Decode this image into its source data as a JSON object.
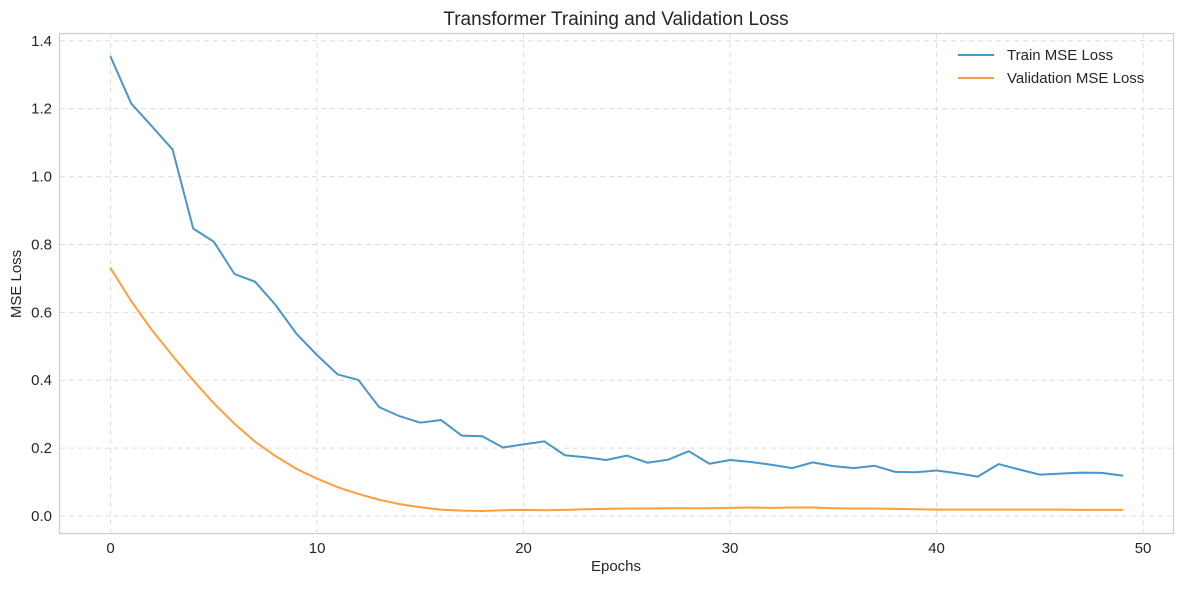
{
  "chart_data": {
    "type": "line",
    "title": "Transformer Training and Validation Loss",
    "xlabel": "Epochs",
    "ylabel": "MSE Loss",
    "xlim": [
      -2.45,
      51.45
    ],
    "ylim": [
      -0.05,
      1.42
    ],
    "xticks": [
      0,
      10,
      20,
      30,
      40,
      50
    ],
    "yticks": [
      0.0,
      0.2,
      0.4,
      0.6,
      0.8,
      1.0,
      1.2,
      1.4
    ],
    "xtick_labels": [
      "0",
      "10",
      "20",
      "30",
      "40",
      "50"
    ],
    "ytick_labels": [
      "0.0",
      "0.2",
      "0.4",
      "0.6",
      "0.8",
      "1.0",
      "1.2",
      "1.4"
    ],
    "grid": true,
    "legend_position": "top-right",
    "x": [
      0,
      1,
      2,
      3,
      4,
      5,
      6,
      7,
      8,
      9,
      10,
      11,
      12,
      13,
      14,
      15,
      16,
      17,
      18,
      19,
      20,
      21,
      22,
      23,
      24,
      25,
      26,
      27,
      28,
      29,
      30,
      31,
      32,
      33,
      34,
      35,
      36,
      37,
      38,
      39,
      40,
      41,
      42,
      43,
      44,
      45,
      46,
      47,
      48,
      49
    ],
    "series": [
      {
        "name": "Train MSE Loss",
        "color": "#4a96c8",
        "values": [
          1.353,
          1.215,
          1.148,
          1.08,
          0.847,
          0.808,
          0.713,
          0.69,
          0.621,
          0.537,
          0.474,
          0.417,
          0.401,
          0.321,
          0.294,
          0.275,
          0.283,
          0.237,
          0.235,
          0.202,
          0.211,
          0.22,
          0.179,
          0.173,
          0.165,
          0.178,
          0.157,
          0.166,
          0.191,
          0.154,
          0.165,
          0.159,
          0.151,
          0.141,
          0.158,
          0.147,
          0.141,
          0.148,
          0.13,
          0.129,
          0.134,
          0.126,
          0.116,
          0.153,
          0.137,
          0.122,
          0.125,
          0.128,
          0.127,
          0.119
        ]
      },
      {
        "name": "Validation MSE Loss",
        "color": "#fd9f3e",
        "values": [
          0.73,
          0.633,
          0.548,
          0.472,
          0.4,
          0.332,
          0.272,
          0.219,
          0.176,
          0.139,
          0.11,
          0.085,
          0.065,
          0.048,
          0.035,
          0.026,
          0.019,
          0.016,
          0.015,
          0.017,
          0.018,
          0.017,
          0.018,
          0.02,
          0.021,
          0.022,
          0.022,
          0.023,
          0.023,
          0.023,
          0.024,
          0.025,
          0.024,
          0.025,
          0.025,
          0.023,
          0.022,
          0.022,
          0.021,
          0.02,
          0.019,
          0.019,
          0.019,
          0.019,
          0.019,
          0.019,
          0.019,
          0.018,
          0.018,
          0.018
        ]
      }
    ]
  }
}
